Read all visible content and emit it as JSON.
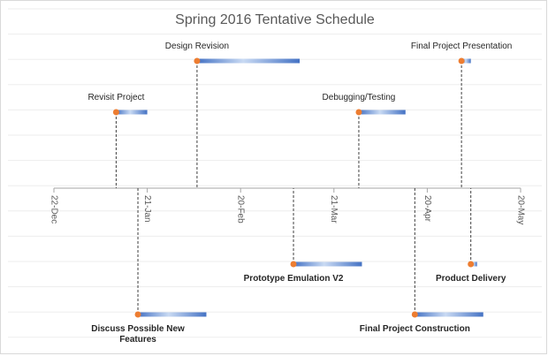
{
  "chart_data": {
    "type": "timeline",
    "title": "Spring 2016 Tentative Schedule",
    "x_ticks": [
      "22-Dec",
      "21-Jan",
      "20-Feb",
      "21-Mar",
      "20-Apr",
      "20-May"
    ],
    "x_range": [
      "2015-12-22",
      "2016-05-20"
    ],
    "grid": true,
    "colors": {
      "marker": "#ED7D31",
      "bar_dark": "#4472C4",
      "bar_light": "#C9DAF3",
      "axis": "#A6A6A6",
      "grid": "#EDEDED"
    },
    "tasks": [
      {
        "label": "Revisit Project",
        "start": "2016-01-11",
        "end": "2016-01-21",
        "side": "above",
        "level": 2
      },
      {
        "label": "Design Revision",
        "start": "2016-02-06",
        "end": "2016-03-10",
        "side": "above",
        "level": 1
      },
      {
        "label": "Debugging/Testing",
        "start": "2016-03-29",
        "end": "2016-04-13",
        "side": "above",
        "level": 2
      },
      {
        "label": "Final Project Presentation",
        "start": "2016-05-01",
        "end": "2016-05-04",
        "side": "above",
        "level": 1
      },
      {
        "label": "Prototype Emulation V2",
        "start": "2016-03-08",
        "end": "2016-03-30",
        "side": "below",
        "level": 1
      },
      {
        "label": "Product Delivery",
        "start": "2016-05-04",
        "end": "2016-05-06",
        "side": "below",
        "level": 1
      },
      {
        "label": "Discuss Possible New Features",
        "start": "2016-01-18",
        "end": "2016-02-09",
        "side": "below",
        "level": 2
      },
      {
        "label": "Final Project Construction",
        "start": "2016-04-16",
        "end": "2016-05-08",
        "side": "below",
        "level": 2
      }
    ]
  }
}
